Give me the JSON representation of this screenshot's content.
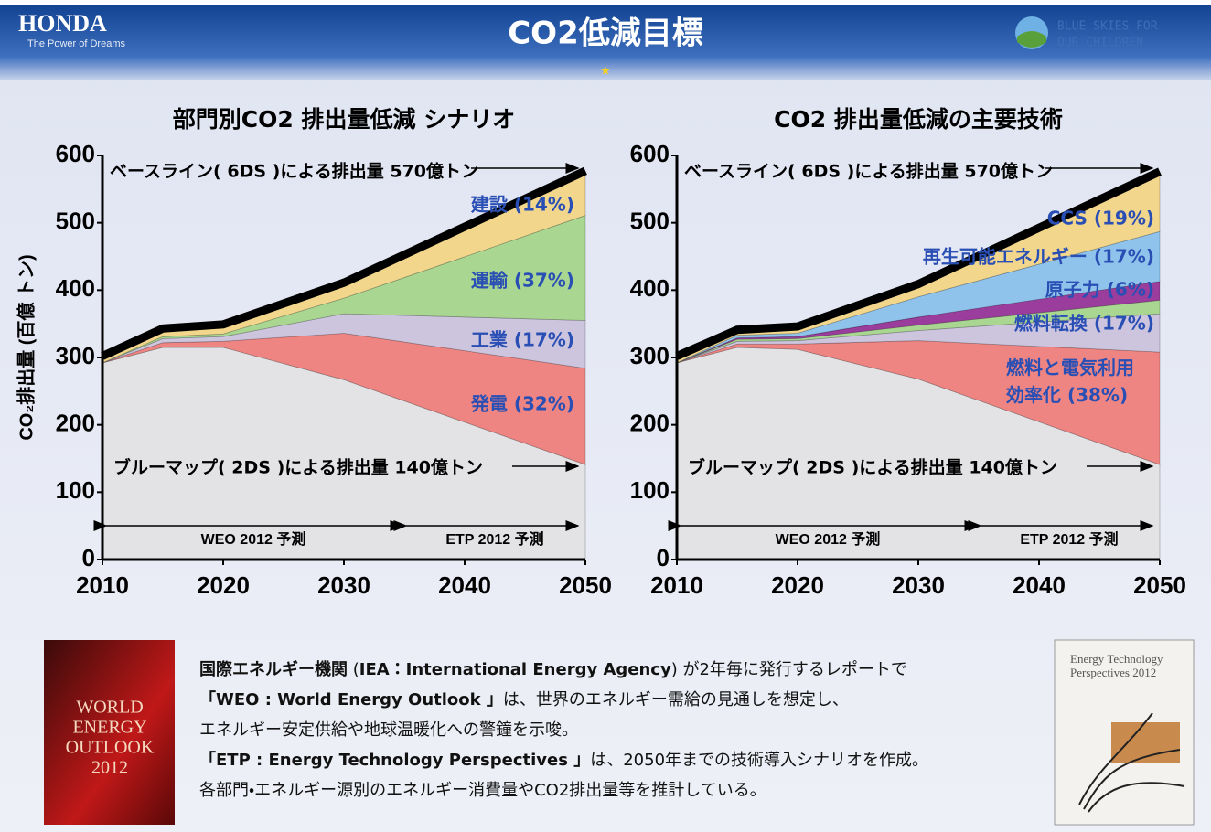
{
  "header": {
    "brand": "HONDA",
    "tagline": "The Power of Dreams",
    "title": "CO2低減目標",
    "campaign": [
      "BLUE SKIES FOR",
      "OUR CHILDREN"
    ]
  },
  "chart_data": [
    {
      "type": "area",
      "stacked": true,
      "title": "部門別CO2 排出量低減 シナリオ",
      "ylabel": "CO₂排出量 (百億 トン)",
      "x": [
        2010,
        2015,
        2020,
        2030,
        2050
      ],
      "xlim": [
        2010,
        2050
      ],
      "xticks": [
        2010,
        2020,
        2030,
        2040,
        2050
      ],
      "ylim": [
        0,
        600
      ],
      "yticks": [
        0,
        100,
        200,
        300,
        400,
        500,
        600
      ],
      "series": [
        {
          "color": "#e3e3e6",
          "values": [
            292,
            315,
            315,
            267,
            141
          ]
        },
        {
          "name": "発電 (32%)",
          "color": "#ee8582",
          "values": [
            0,
            7,
            9,
            69,
            143
          ]
        },
        {
          "name": "工業 (17%)",
          "color": "#cdc4de",
          "values": [
            0,
            6,
            7,
            29,
            71
          ]
        },
        {
          "name": "運輸 (37%)",
          "color": "#a9d791",
          "values": [
            0,
            3,
            4,
            23,
            156
          ]
        },
        {
          "name": "建設 (14%)",
          "color": "#f2d68c",
          "values": [
            6,
            8,
            10,
            19,
            62
          ]
        }
      ],
      "annotations": [
        "ベースライン( 6DS )による排出量 570億トン",
        "ブルーマップ( 2DS )による排出量 140億トン",
        "WEO 2012 予測",
        "ETP 2012 予測"
      ]
    },
    {
      "type": "area",
      "stacked": true,
      "title": "CO2 排出量低減の主要技術",
      "x": [
        2010,
        2015,
        2020,
        2030,
        2050
      ],
      "xlim": [
        2010,
        2050
      ],
      "xticks": [
        2010,
        2020,
        2030,
        2040,
        2050
      ],
      "ylim": [
        0,
        600
      ],
      "yticks": [
        0,
        100,
        200,
        300,
        400,
        500,
        600
      ],
      "series": [
        {
          "color": "#e3e3e6",
          "values": [
            292,
            315,
            312,
            268,
            141
          ]
        },
        {
          "name": "燃料と電気利用効率化 (38%)",
          "color": "#ee8582",
          "values": [
            0,
            5,
            8,
            57,
            167
          ]
        },
        {
          "color": "#cdc4de",
          "values": [
            0,
            4,
            5,
            15,
            57
          ]
        },
        {
          "name": "燃料転換 (17%)",
          "color": "#a9d791",
          "values": [
            0,
            3,
            3,
            8,
            20
          ]
        },
        {
          "name": "原子力 (6%)",
          "color": "#9a3d9c",
          "values": [
            0,
            2,
            3,
            12,
            28
          ]
        },
        {
          "name": "再生可能エネルギー (17%)",
          "color": "#8fc3ec",
          "values": [
            0,
            4,
            5,
            30,
            74
          ]
        },
        {
          "name": "CCS (19%)",
          "color": "#f2d68c",
          "values": [
            6,
            4,
            6,
            15,
            85
          ]
        }
      ],
      "annotations": [
        "ベースライン( 6DS )による排出量 570億トン",
        "ブルーマップ( 2DS )による排出量 140億トン",
        "WEO 2012 予測",
        "ETP 2012 予測"
      ]
    }
  ],
  "books": [
    [
      "WORLD",
      "ENERGY",
      "OUTLOOK",
      "2012"
    ],
    [
      "Energy Technology",
      "Perspectives 2012"
    ]
  ],
  "description": [
    [
      "国際エネルギー機関",
      " (",
      "IEA：International Energy Agency",
      ") が2年毎に発行するレポートで"
    ],
    [
      "「WEO : World Energy Outlook 」",
      "は、世界のエネルギー需給の見通しを想定し、"
    ],
    [
      "エネルギー安定供給や地球温暖化への警鐘を示唆。"
    ],
    [
      "「ETP : Energy Technology Perspectives 」",
      "は、2050年までの技術導入シナリオを作成。"
    ],
    [
      "各部門・エネルギー源別のエネルギー消費量やCO2排出量等を推計している。"
    ]
  ]
}
